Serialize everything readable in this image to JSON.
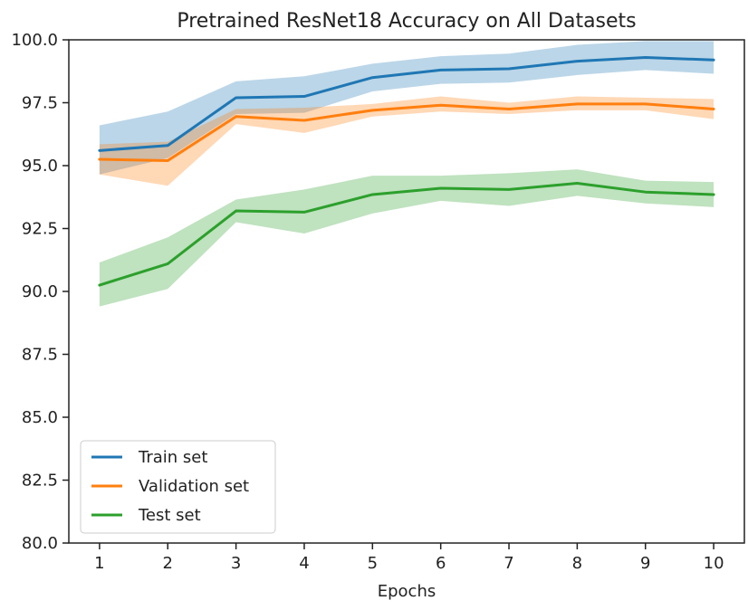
{
  "chart_data": {
    "type": "line",
    "title": "Pretrained ResNet18 Accuracy on All Datasets",
    "xlabel": "Epochs",
    "ylabel": "",
    "x": [
      1,
      2,
      3,
      4,
      5,
      6,
      7,
      8,
      9,
      10
    ],
    "xlim": [
      0.55,
      10.45
    ],
    "ylim": [
      80.0,
      100.0
    ],
    "x_ticks": [
      1,
      2,
      3,
      4,
      5,
      6,
      7,
      8,
      9,
      10
    ],
    "y_ticks": [
      80.0,
      82.5,
      85.0,
      87.5,
      90.0,
      92.5,
      95.0,
      97.5,
      100.0
    ],
    "grid": false,
    "legend_position": "lower-left",
    "series": [
      {
        "name": "Train set",
        "color": "#1f77b4",
        "values": [
          95.6,
          95.8,
          97.7,
          97.75,
          98.5,
          98.8,
          98.85,
          99.15,
          99.3,
          99.2
        ],
        "lower": [
          94.65,
          95.3,
          97.05,
          97.1,
          97.95,
          98.25,
          98.3,
          98.6,
          98.8,
          98.65
        ],
        "upper": [
          96.6,
          97.15,
          98.35,
          98.55,
          99.05,
          99.35,
          99.45,
          99.8,
          99.95,
          99.95
        ]
      },
      {
        "name": "Validation set",
        "color": "#ff7f0e",
        "values": [
          95.25,
          95.2,
          96.95,
          96.8,
          97.2,
          97.4,
          97.25,
          97.45,
          97.45,
          97.25
        ],
        "lower": [
          94.65,
          94.2,
          96.65,
          96.3,
          96.95,
          97.15,
          97.05,
          97.2,
          97.2,
          96.85
        ],
        "upper": [
          95.85,
          95.95,
          97.25,
          97.3,
          97.45,
          97.75,
          97.5,
          97.75,
          97.7,
          97.65
        ]
      },
      {
        "name": "Test set",
        "color": "#2ca02c",
        "values": [
          90.25,
          91.1,
          93.2,
          93.15,
          93.85,
          94.1,
          94.05,
          94.3,
          93.95,
          93.85
        ],
        "lower": [
          89.4,
          90.1,
          92.75,
          92.3,
          93.1,
          93.6,
          93.4,
          93.8,
          93.5,
          93.35
        ],
        "upper": [
          91.15,
          92.15,
          93.65,
          94.05,
          94.6,
          94.6,
          94.7,
          94.85,
          94.4,
          94.35
        ]
      }
    ]
  }
}
